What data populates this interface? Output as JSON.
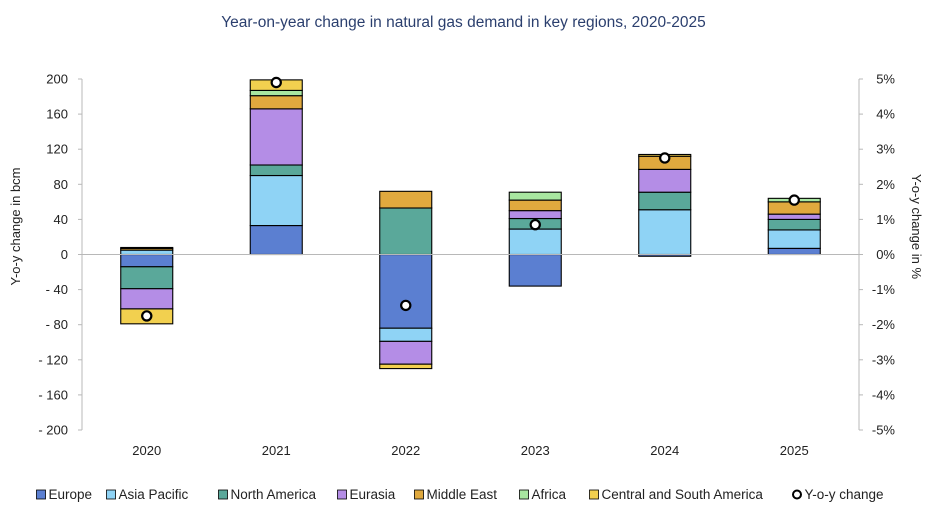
{
  "chart_data": {
    "type": "bar",
    "stacked": true,
    "title": "Year-on-year change in natural gas demand in key regions, 2020-2025",
    "ylabel": "Y-o-y change in bcm",
    "y2label": "Y-o-y change in %",
    "categories": [
      "2020",
      "2021",
      "2022",
      "2023",
      "2024",
      "2025"
    ],
    "ylim": [
      -200,
      200
    ],
    "yticks": [
      200,
      160,
      120,
      80,
      40,
      0,
      -40,
      -80,
      -120,
      -160,
      -200
    ],
    "ytick_labels": [
      "200",
      "160",
      "120",
      "80",
      "40",
      "0",
      "- 40",
      "- 80",
      "- 120",
      "- 160",
      "- 200"
    ],
    "y2lim": [
      -5,
      5
    ],
    "y2ticks": [
      5,
      4,
      3,
      2,
      1,
      0,
      -1,
      -2,
      -3,
      -4,
      -5
    ],
    "y2tick_labels": [
      "5%",
      "4%",
      "3%",
      "2%",
      "1%",
      "0%",
      "-1%",
      "-2%",
      "-3%",
      "-4%",
      "-5%"
    ],
    "grid": false,
    "legend_position": "bottom",
    "series": [
      {
        "name": "Europe",
        "color": "#5b7fd1",
        "values": [
          -14,
          33,
          -84,
          -36,
          -2,
          7
        ]
      },
      {
        "name": "Asia Pacific",
        "color": "#8fd3f5",
        "values": [
          5,
          57,
          -15,
          29,
          51,
          21
        ]
      },
      {
        "name": "North America",
        "color": "#5aa89a",
        "values": [
          -25,
          12,
          53,
          12,
          20,
          12
        ]
      },
      {
        "name": "Eurasia",
        "color": "#b48de6",
        "values": [
          -23,
          64,
          -26,
          9,
          26,
          6
        ]
      },
      {
        "name": "Middle East",
        "color": "#e0a93e",
        "values": [
          2,
          15,
          19,
          12,
          15,
          14
        ]
      },
      {
        "name": "Africa",
        "color": "#a8e6a0",
        "values": [
          1,
          6,
          0,
          9,
          0,
          4
        ]
      },
      {
        "name": "Central and South America",
        "color": "#f2d04f",
        "values": [
          -17,
          12,
          -5,
          0,
          2,
          0
        ]
      }
    ],
    "yoy_change": {
      "name": "Y-o-y change",
      "values": [
        -1.75,
        4.9,
        -1.45,
        0.85,
        2.75,
        1.55
      ],
      "axis": "right"
    }
  }
}
